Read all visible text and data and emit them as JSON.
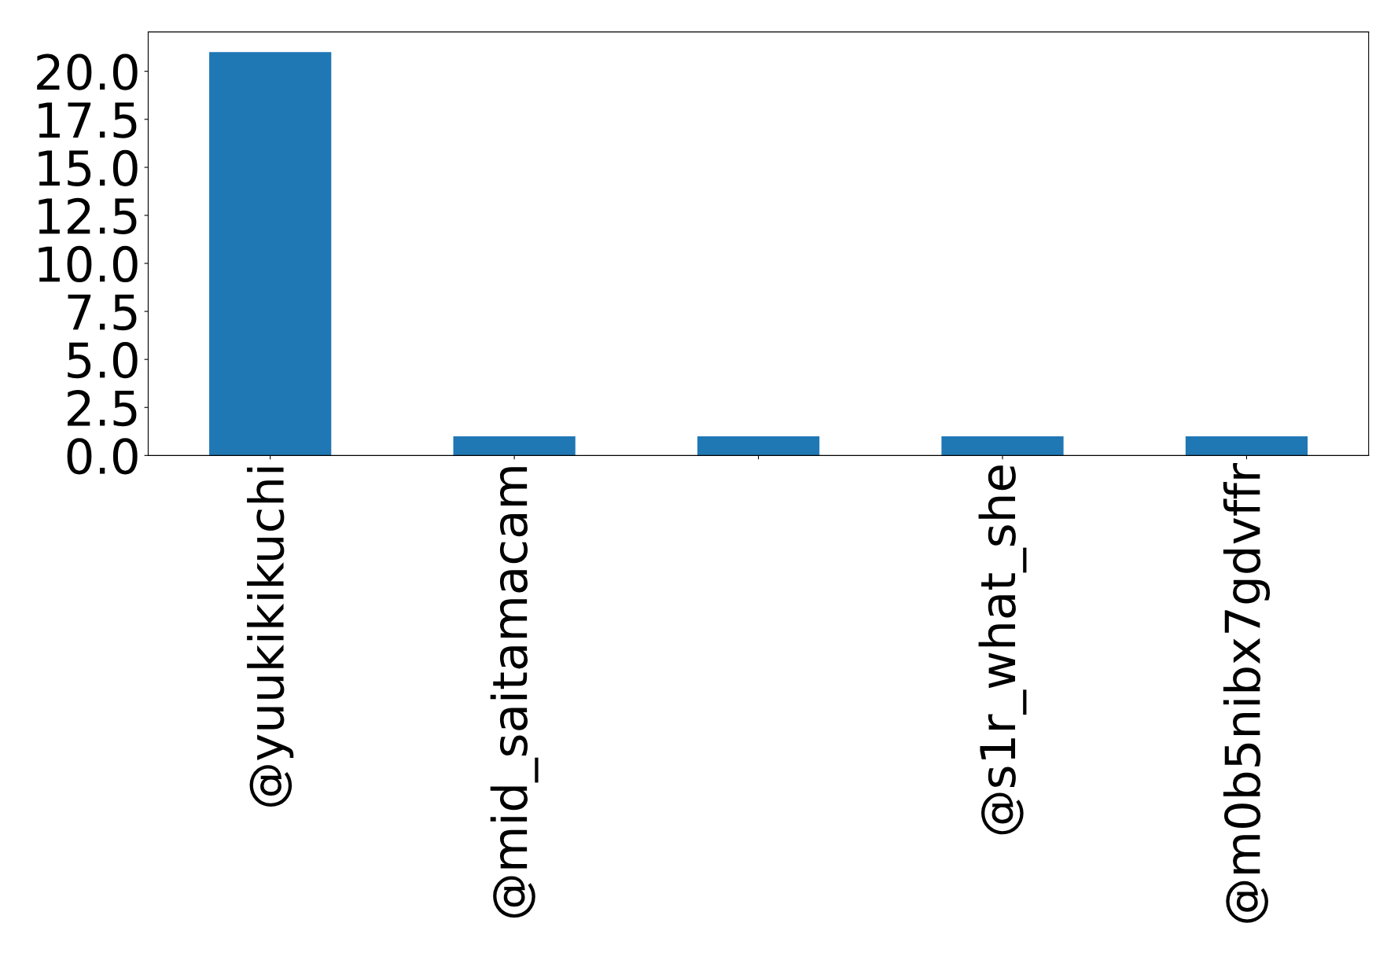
{
  "chart_data": {
    "type": "bar",
    "categories": [
      "@yuukikikuchi",
      "@mid_saitamacam",
      null,
      "@s1r_what_she",
      "@m0b5nibx7gdvffr"
    ],
    "values": [
      21,
      1,
      1,
      1,
      1
    ],
    "color": "#1f77b4",
    "ylim": [
      0,
      22.05
    ],
    "yticks": [
      {
        "value": 0,
        "label": "0.0"
      },
      {
        "value": 2.5,
        "label": "2.5"
      },
      {
        "value": 5,
        "label": "5.0"
      },
      {
        "value": 7.5,
        "label": "7.5"
      },
      {
        "value": 10,
        "label": "10.0"
      },
      {
        "value": 12.5,
        "label": "12.5"
      },
      {
        "value": 15,
        "label": "15.0"
      },
      {
        "value": 17.5,
        "label": "17.5"
      },
      {
        "value": 20,
        "label": "20.0"
      }
    ],
    "grid": false,
    "legend": false
  }
}
